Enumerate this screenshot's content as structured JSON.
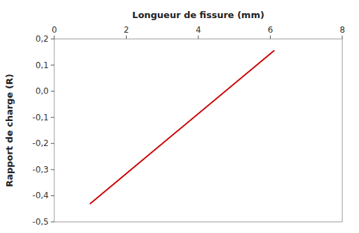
{
  "chart_data": {
    "type": "line",
    "x_label": "Longueur de fissure (mm)",
    "y_label": "Rapport de charge (R)",
    "x": [
      1.0,
      6.1
    ],
    "values": [
      -0.43,
      0.155
    ],
    "color": "#cc0000",
    "xlim": [
      0,
      8
    ],
    "ylim": [
      -0.5,
      0.2
    ],
    "xticks": [
      0,
      2,
      4,
      6,
      8
    ],
    "yticks": [
      {
        "value": -0.5,
        "label": "-0,5"
      },
      {
        "value": -0.4,
        "label": "-0,4"
      },
      {
        "value": -0.3,
        "label": "-0,3"
      },
      {
        "value": -0.2,
        "label": "-0,2"
      },
      {
        "value": -0.1,
        "label": "-0,1"
      },
      {
        "value": 0,
        "label": "0,0"
      },
      {
        "value": 0.1,
        "label": "0,1"
      },
      {
        "value": 0.2,
        "label": "0,2"
      }
    ],
    "grid": false
  }
}
